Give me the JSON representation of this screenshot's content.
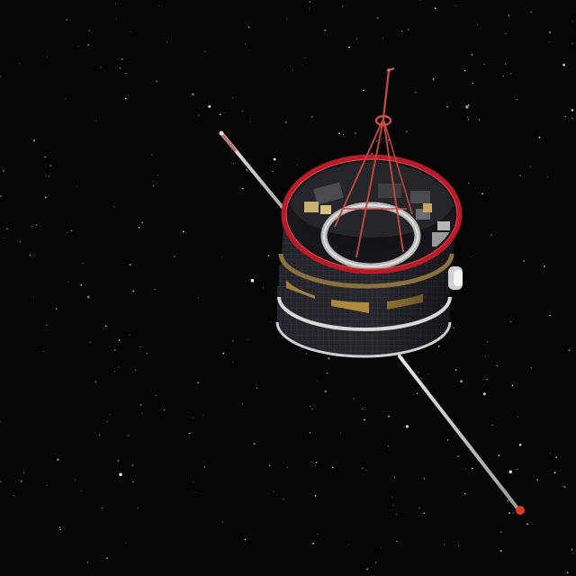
{
  "scene": {
    "subject": "spinning-cylindrical-satellite",
    "background_color": "#050505",
    "star_color": "#ffffff",
    "boom_color": "#cfcfcf",
    "boom_tip_color": "#d83a2a",
    "rim_color": "#c0202a",
    "hull_panel_color": "#2a2a30",
    "gold_band_color": "#b08a40",
    "antenna_color": "#b85040",
    "ring_color": "#b8b8b8"
  }
}
